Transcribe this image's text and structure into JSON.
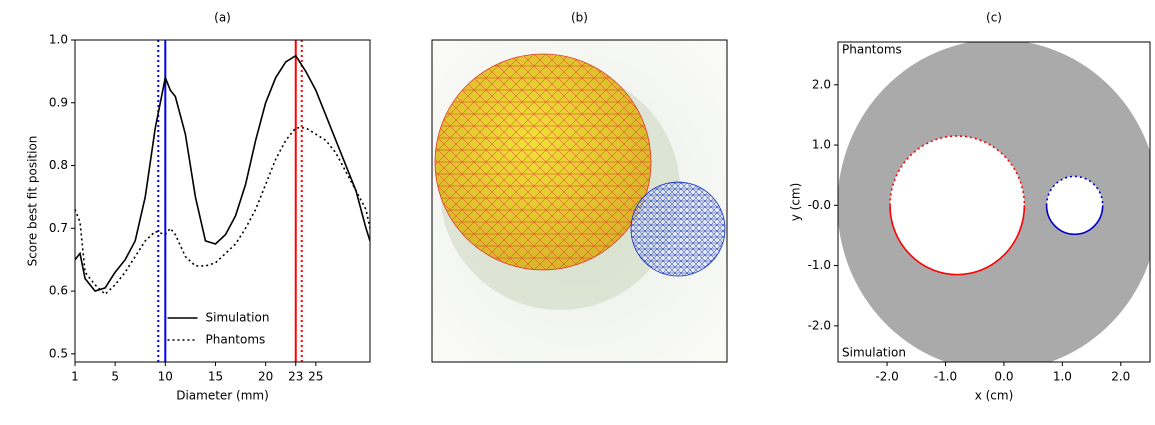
{
  "chart_data": [
    {
      "type": "line",
      "title": "(a)",
      "xlabel": "Diameter (mm)",
      "ylabel": "Score best fit position",
      "x": [
        1,
        1.5,
        2,
        3,
        4,
        5,
        6,
        7,
        8,
        9,
        10,
        10.5,
        11,
        12,
        13,
        14,
        15,
        16,
        17,
        18,
        19,
        20,
        21,
        22,
        23,
        24,
        25,
        26,
        27,
        28,
        29,
        30,
        30.4
      ],
      "series": [
        {
          "name": "Simulation",
          "color": "#000000",
          "linestyle": "solid",
          "values": [
            0.65,
            0.66,
            0.62,
            0.6,
            0.605,
            0.63,
            0.65,
            0.68,
            0.75,
            0.86,
            0.94,
            0.92,
            0.91,
            0.85,
            0.75,
            0.68,
            0.675,
            0.69,
            0.72,
            0.77,
            0.84,
            0.9,
            0.94,
            0.965,
            0.975,
            0.95,
            0.92,
            0.88,
            0.84,
            0.8,
            0.76,
            0.7,
            0.68
          ]
        },
        {
          "name": "Phantoms",
          "color": "#000000",
          "linestyle": "dotted",
          "values": [
            0.73,
            0.71,
            0.63,
            0.61,
            0.595,
            0.61,
            0.63,
            0.655,
            0.68,
            0.695,
            0.69,
            0.7,
            0.69,
            0.655,
            0.64,
            0.64,
            0.645,
            0.66,
            0.675,
            0.7,
            0.73,
            0.77,
            0.81,
            0.84,
            0.86,
            0.86,
            0.85,
            0.84,
            0.82,
            0.79,
            0.76,
            0.73,
            0.7
          ]
        }
      ],
      "vlines": [
        {
          "x": 9.3,
          "color": "#0000ff",
          "linestyle": "dotted"
        },
        {
          "x": 10,
          "color": "#0000ff",
          "linestyle": "solid"
        },
        {
          "x": 23,
          "color": "#ff0000",
          "linestyle": "solid"
        },
        {
          "x": 23.6,
          "color": "#ff0000",
          "linestyle": "dotted"
        }
      ],
      "xlim": [
        1,
        30.4
      ],
      "ylim": [
        0.487,
        1.0
      ],
      "xticks": [
        1,
        5,
        10,
        15,
        20,
        23,
        25
      ],
      "yticks": [
        0.5,
        0.6,
        0.7,
        0.8,
        0.9,
        {
          "value": 1,
          "label": "1.0"
        }
      ],
      "legend": "lower center"
    },
    {
      "type": "image",
      "title": "(b)"
    },
    {
      "type": "circles",
      "title": "(c)",
      "xlabel": "x (cm)",
      "ylabel": "y (cm)",
      "annotations": [
        "Phantoms",
        "Simulation"
      ],
      "xlim": [
        -2.84,
        2.5
      ],
      "ylim": [
        -2.6,
        2.71
      ],
      "xticks": [
        {
          "value": -2,
          "label": "-2.0"
        },
        {
          "value": -1,
          "label": "-1.0"
        },
        {
          "value": 0,
          "label": "0.0"
        },
        {
          "value": 1,
          "label": "1.0"
        },
        {
          "value": 2,
          "label": "2.0"
        }
      ],
      "yticks": [
        {
          "value": 2,
          "label": "2.0"
        },
        {
          "value": 1,
          "label": "1.0"
        },
        {
          "value": 0,
          "label": "-0.0"
        },
        {
          "value": -1,
          "label": "-1.0"
        },
        {
          "value": -2,
          "label": "-2.0"
        }
      ],
      "disk": {
        "x": -0.1,
        "y": 0,
        "radius": 2.75,
        "color": "#aaaaaa"
      },
      "circles": [
        {
          "x": -0.8,
          "y": 0,
          "radius": 1.15,
          "color": "#ff0000"
        },
        {
          "x": 1.21,
          "y": 0,
          "radius": 0.48,
          "color": "#0000cc"
        }
      ]
    }
  ]
}
